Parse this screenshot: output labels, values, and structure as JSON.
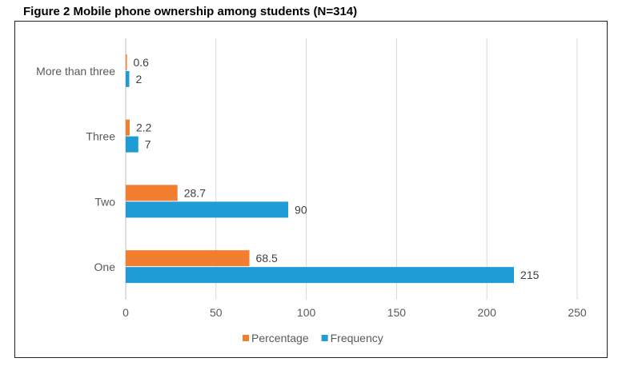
{
  "figure_title": "Figure 2 Mobile phone ownership among students (N=314)",
  "colors": {
    "percentage": "#F47E2F",
    "frequency": "#1F9CD6",
    "grid": "#D9D9D9"
  },
  "chart_data": {
    "type": "bar",
    "orientation": "horizontal",
    "title": "Figure 2 Mobile phone ownership among students (N=314)",
    "categories": [
      "One",
      "Two",
      "Three",
      "More than three"
    ],
    "series": [
      {
        "name": "Percentage",
        "values": [
          68.5,
          28.7,
          2.2,
          0.6
        ]
      },
      {
        "name": "Frequency",
        "values": [
          215,
          90,
          7,
          2
        ]
      }
    ],
    "xlim": [
      0,
      250
    ],
    "xticks": [
      0,
      50,
      100,
      150,
      200,
      250
    ],
    "grid": "vertical",
    "legend": "bottom-center"
  }
}
